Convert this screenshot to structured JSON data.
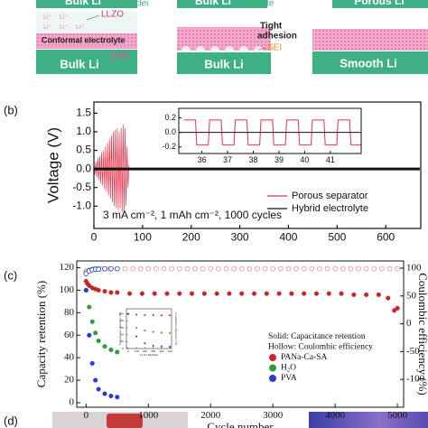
{
  "schematic": {
    "top_left": "Bulk Li",
    "li_nuclei": "Li nuclei",
    "top_middle": "Bulk Li",
    "li_dendrite": "Li dendrite",
    "top_right": "Porous Li",
    "ion_labels": [
      "Li⁺",
      "Li⁺",
      "Li⁺",
      "Li⁺",
      "Li⁺"
    ],
    "llzo": "LLZO",
    "conformal": "Conformal electrolyte",
    "shp": "SHP",
    "bottom_left": "Bulk Li",
    "tight": "Tight",
    "adhesion": "adhesion",
    "sei": "SEI",
    "bottom_middle": "Bulk Li",
    "bottom_right": "Smooth Li"
  },
  "panel_b": {
    "label": "(b)",
    "chart_data": {
      "type": "line",
      "ylabel": "Voltage (V)",
      "annotation": "3 mA cm⁻², 1 mAh cm⁻², 1000 cycles",
      "xlim": [
        0,
        672
      ],
      "ylim": [
        -1.6,
        1.8
      ],
      "xticks": [
        0,
        100,
        200,
        300,
        400,
        500,
        600
      ],
      "yticks": [
        1.5,
        {
          "value": 1,
          "label": "1.0"
        },
        0.5,
        {
          "value": 0,
          "label": "0.0"
        },
        -0.5,
        {
          "value": -1,
          "label": "-1.0"
        }
      ],
      "legend": "lower right",
      "series": [
        {
          "name": "Porous separator",
          "color": "#e8334a",
          "marker": "none",
          "x": [
            0,
            2,
            4,
            6,
            8,
            10,
            12,
            14,
            16,
            18,
            20,
            22,
            24,
            26,
            28,
            30,
            32,
            34,
            36,
            38,
            40,
            42,
            44,
            46,
            48,
            50,
            52,
            54,
            56,
            58,
            60,
            62,
            64,
            66,
            68,
            70,
            72
          ],
          "values": [
            0.15,
            -0.15,
            0.2,
            -0.22,
            0.3,
            -0.3,
            0.35,
            -0.38,
            0.45,
            -0.45,
            0.5,
            -0.55,
            0.6,
            -0.62,
            0.7,
            -0.72,
            0.8,
            -0.8,
            0.9,
            -0.9,
            1.0,
            -1.0,
            1.05,
            -1.05,
            1.1,
            -1.1,
            1.0,
            -1.05,
            1.1,
            -1.15,
            1.2,
            -1.2,
            1.1,
            -1.0,
            0.6,
            -0.5,
            0.1
          ]
        },
        {
          "name": "Hybrid electrolyte",
          "color": "#111111",
          "marker": "none",
          "x": [
            0,
            670
          ],
          "values": [
            0,
            0
          ]
        }
      ],
      "inset": {
        "type": "line",
        "xlim": [
          35.1,
          42.2
        ],
        "ylim": [
          -0.29,
          0.33
        ],
        "xticks": [
          36,
          37,
          38,
          39,
          40,
          41
        ],
        "yticks": [
          0.2,
          {
            "value": 0,
            "label": "0.0"
          },
          -0.2
        ],
        "series": [
          {
            "color": "#e8334a",
            "marker": "none",
            "x": [
              35.3,
              35.75,
              35.8,
              36.25,
              36.3,
              36.75,
              36.8,
              37.25,
              37.3,
              37.75,
              37.8,
              38.25,
              38.3,
              38.75,
              38.8,
              39.25,
              39.3,
              39.75,
              39.8,
              40.25,
              40.3,
              40.75,
              40.8,
              41.25,
              41.3,
              41.75,
              41.8,
              42.2
            ],
            "values": [
              0.17,
              0.17,
              -0.17,
              -0.17,
              0.17,
              0.17,
              -0.17,
              -0.17,
              0.17,
              0.17,
              -0.17,
              -0.17,
              0.17,
              0.17,
              -0.17,
              -0.17,
              0.17,
              0.17,
              -0.17,
              -0.17,
              0.17,
              0.17,
              -0.17,
              -0.17,
              0.17,
              0.17,
              -0.17,
              -0.17
            ]
          },
          {
            "color": "#111111",
            "marker": "none",
            "x": [
              35.1,
              42.2
            ],
            "values": [
              0,
              0
            ]
          }
        ]
      }
    }
  },
  "panel_c": {
    "label": "(c)",
    "chart_data": {
      "type": "scatter",
      "xlabel": "Cycle number",
      "ylabel": "Capacity retention (%)",
      "y2label": "Coulombic efficiency (%)",
      "xlim": [
        -150,
        5100
      ],
      "ylim": [
        -4,
        126
      ],
      "y2lim": [
        -150,
        113
      ],
      "xticks": [
        0,
        1000,
        2000,
        3000,
        4000,
        5000
      ],
      "yticks": [
        0,
        20,
        40,
        60,
        80,
        100,
        120
      ],
      "y2ticks": [
        -100,
        -50,
        0,
        50,
        100
      ],
      "legend": "lower right",
      "legend_title": [
        "Solid: Capacitance retention",
        "Hollow: Coulombic efficiency"
      ],
      "series": [
        {
          "axis": "y2",
          "color": "#d98a9a",
          "marker": "hollow",
          "x": [
            0,
            125,
            250,
            375,
            500,
            625,
            750,
            875,
            1000,
            1125,
            1250,
            1375,
            1500,
            1625,
            1750,
            1875,
            2000,
            2125,
            2250,
            2375,
            2500,
            2625,
            2750,
            2875,
            3000,
            3125,
            3250,
            3375,
            3500,
            3625,
            3750,
            3875,
            4000,
            4125,
            4250,
            4375,
            4500,
            4625,
            4750,
            4875,
            5000
          ],
          "values": [
            95,
            98,
            99,
            99,
            99,
            99,
            99,
            99,
            99,
            99,
            99,
            99,
            99,
            99,
            99,
            99,
            99,
            99,
            99,
            99,
            99,
            99,
            99,
            99,
            99,
            99,
            99,
            99,
            99,
            99,
            99,
            99,
            99,
            99,
            99,
            99,
            99,
            99,
            99,
            99,
            99
          ]
        },
        {
          "axis": "y2",
          "color": "#2f9e3a",
          "marker": "hollow",
          "x": [
            0,
            50,
            100,
            150,
            200,
            300,
            400,
            500
          ],
          "values": [
            92,
            96,
            98,
            99,
            99,
            99,
            99,
            99
          ]
        },
        {
          "axis": "y2",
          "color": "#2a3bd1",
          "marker": "hollow",
          "x": [
            0,
            50,
            100,
            150,
            200,
            300,
            400,
            500
          ],
          "values": [
            90,
            95,
            97,
            98,
            98,
            99,
            99,
            99
          ]
        },
        {
          "name": "PANa-Ca-SA",
          "color": "#c8262a",
          "marker": "filled",
          "x": [
            0,
            20,
            50,
            100,
            150,
            200,
            300,
            400,
            500,
            700,
            900,
            1100,
            1300,
            1500,
            1700,
            1900,
            2100,
            2300,
            2500,
            2700,
            2900,
            3100,
            3300,
            3500,
            3700,
            3900,
            4100,
            4300,
            4500,
            4700,
            4850,
            4950,
            5000
          ],
          "values": [
            108,
            106,
            104,
            102,
            101,
            100,
            99,
            98,
            98,
            97,
            97,
            97,
            97,
            97,
            97,
            97,
            97,
            97,
            97,
            97,
            97,
            97,
            97,
            97,
            97,
            97,
            97,
            96,
            96,
            96,
            93,
            82,
            84
          ]
        },
        {
          "name": "H₂O",
          "color": "#2f9e3a",
          "marker": "filled",
          "x": [
            0,
            50,
            100,
            150,
            200,
            300,
            400,
            500
          ],
          "values": [
            100,
            85,
            72,
            62,
            55,
            50,
            47,
            45
          ]
        },
        {
          "name": "PVA",
          "color": "#2a3bd1",
          "marker": "filled",
          "x": [
            0,
            50,
            100,
            150,
            200,
            300,
            400,
            500
          ],
          "values": [
            100,
            60,
            35,
            20,
            12,
            8,
            6,
            5
          ]
        }
      ],
      "inset": {
        "type": "scatter",
        "xlabel": "Cycle Number",
        "ylabel": "Capacitance retention (%)",
        "y2label": "Coulombic efficiency (%)",
        "xlim": [
          -20,
          520
        ],
        "ylim": [
          0,
          115
        ],
        "xticks": [
          0,
          100,
          200,
          300,
          400,
          500
        ],
        "yticks": [
          0,
          20,
          40,
          60,
          80,
          100
        ],
        "series": [
          {
            "color": "#c8262a",
            "marker": "filled",
            "x": [
              0,
              100,
              200,
              300,
              400,
              500
            ],
            "values": [
              100,
              98,
              97,
              97,
              96,
              96
            ]
          },
          {
            "color": "#2f9e3a",
            "marker": "filled",
            "x": [
              0,
              100,
              200,
              300,
              400,
              500
            ],
            "values": [
              100,
              60,
              52,
              48,
              46,
              45
            ]
          },
          {
            "color": "#2a3bd1",
            "marker": "filled",
            "x": [
              0,
              100,
              200,
              300,
              400,
              500
            ],
            "values": [
              100,
              35,
              15,
              8,
              6,
              5
            ]
          }
        ]
      }
    }
  },
  "panel_d": {
    "label": "(d)"
  }
}
